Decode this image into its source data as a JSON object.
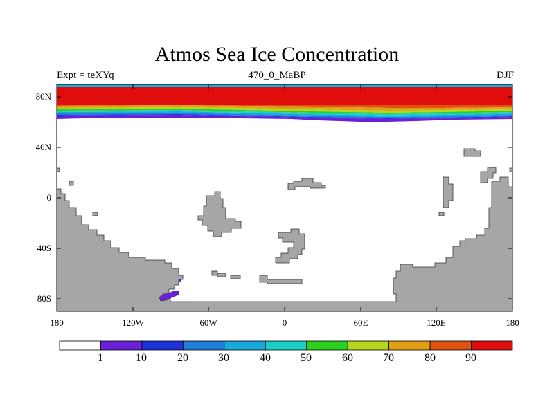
{
  "title": "Atmos Sea Ice Concentration",
  "subtitle_left": "Expt = teXYq",
  "subtitle_center": "470_0_MaBP",
  "subtitle_right": "DJF",
  "y_ticks": [
    "80N",
    "40N",
    "0",
    "40S",
    "80S"
  ],
  "x_ticks": [
    "180",
    "120W",
    "60W",
    "0",
    "60E",
    "120E",
    "180"
  ],
  "colorbar": {
    "labels": [
      "1",
      "10",
      "20",
      "30",
      "40",
      "50",
      "60",
      "70",
      "80",
      "90"
    ],
    "colors": [
      "#ffffff",
      "#6a1fd9",
      "#1f32d9",
      "#1f7fd9",
      "#19aadd",
      "#19cfc8",
      "#2ad21e",
      "#b4d61c",
      "#e0a012",
      "#e05212",
      "#e00d0d"
    ]
  },
  "colors": {
    "land": "#a6a6a6",
    "ice_max": "#e00d0d"
  }
}
